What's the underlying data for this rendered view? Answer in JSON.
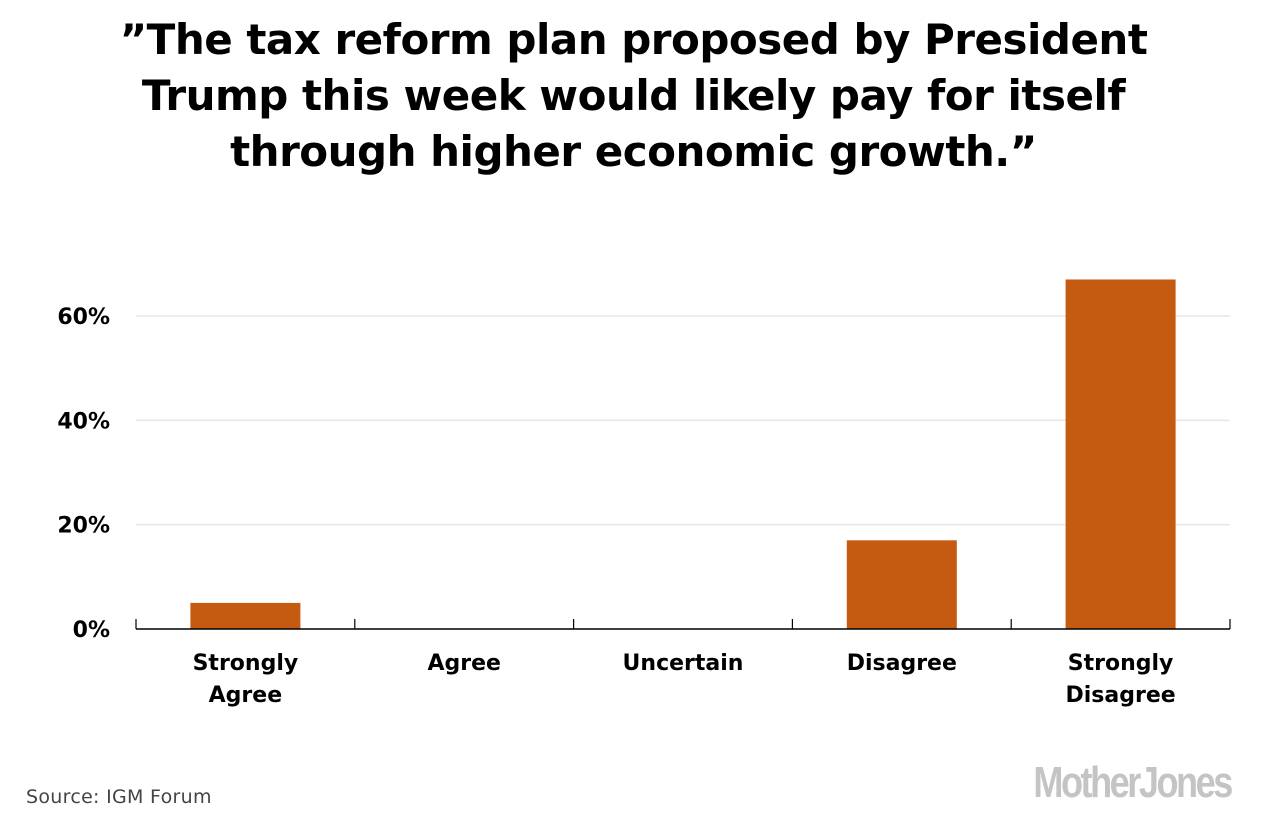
{
  "chart_data": {
    "type": "bar",
    "title": "”The tax reform plan proposed by President Trump this week would likely pay for itself through higher economic growth.”",
    "title_lines": [
      "”The tax reform plan proposed by President",
      "Trump this week would likely pay for itself",
      "through higher economic growth.”"
    ],
    "categories": [
      "Strongly Agree",
      "Agree",
      "Uncertain",
      "Disagree",
      "Strongly Disagree"
    ],
    "category_label_lines": [
      [
        "Strongly",
        "Agree"
      ],
      [
        "Agree"
      ],
      [
        "Uncertain"
      ],
      [
        "Disagree"
      ],
      [
        "Strongly",
        "Disagree"
      ]
    ],
    "values": [
      5,
      0,
      0,
      17,
      67
    ],
    "xlabel": "",
    "ylabel": "",
    "ylim": [
      0,
      70
    ],
    "yticks": [
      0,
      20,
      40,
      60
    ],
    "ytick_labels": [
      "0%",
      "20%",
      "40%",
      "60%"
    ],
    "grid": true,
    "legend": "none",
    "bar_color": "#c55a11",
    "grid_color": "#e6e6e6",
    "source": "Source: IGM Forum",
    "brand": "MotherJones"
  }
}
